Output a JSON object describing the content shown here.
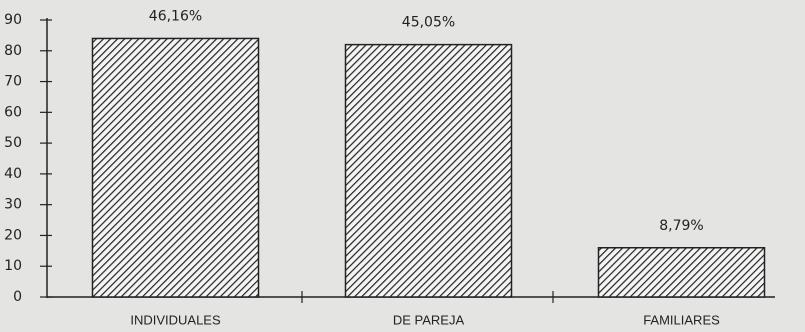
{
  "chart_data": {
    "type": "bar",
    "categories": [
      "INDIVIDUALES",
      "DE PAREJA",
      "FAMILIARES"
    ],
    "values": [
      84,
      82,
      16
    ],
    "annotations": [
      "46,16%",
      "45,05%",
      "8,79%"
    ],
    "color": "#222222",
    "ylim": [
      0,
      90
    ],
    "yticks": [
      0,
      10,
      20,
      30,
      40,
      50,
      60,
      70,
      80,
      90
    ]
  }
}
